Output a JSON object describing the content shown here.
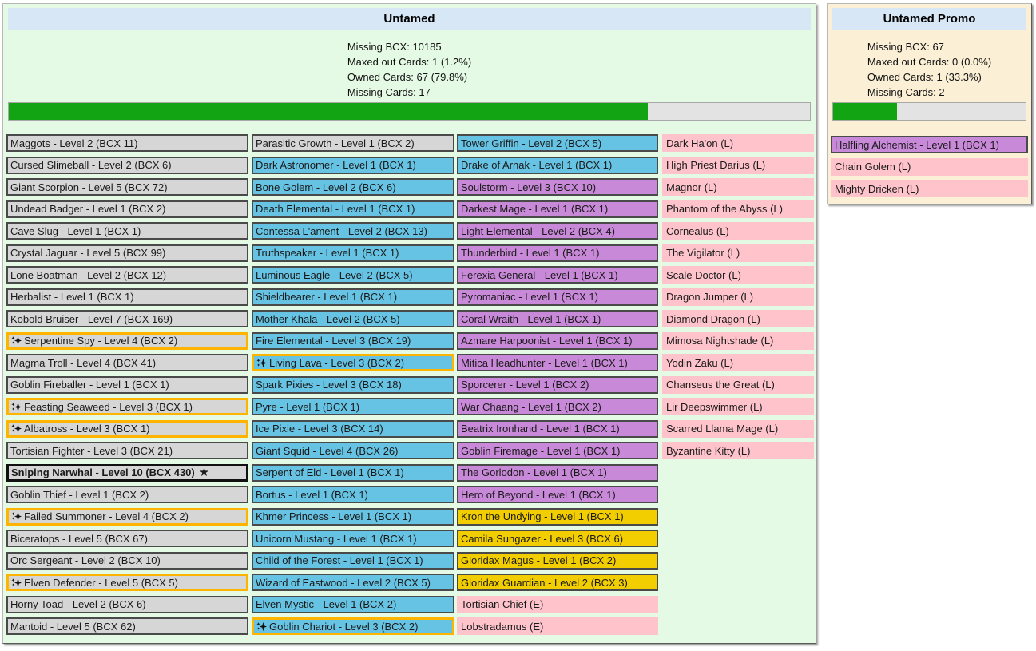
{
  "colors": {
    "panel_green_bg": "#E5FAE5",
    "panel_cream_bg": "#FBEFD5",
    "header_blue_bg": "#D8E7F6",
    "card_gray": "#D6D6D6",
    "card_blue": "#67C3E3",
    "card_purple": "#C989D9",
    "card_gold": "#F2CE00",
    "card_pink": "#FFC4CB",
    "card_border": "#4A4A4A",
    "goldfoil_border": "#FFB400",
    "maxed_border": "#111111",
    "progress_track": "#E3E3E3",
    "progress_fill": "#12A412"
  },
  "glyphs": {
    "maxed_star": "★"
  },
  "untamed": {
    "title": "Untamed",
    "stats_lines": [
      "Missing BCX: 10185",
      "Maxed out Cards: 1 (1.2%)",
      "Owned Cards: 67 (79.8%)",
      "Missing Cards: 17"
    ],
    "progress_pct": 79.8,
    "col1": [
      {
        "label": "Maggots - Level 2 (BCX 11)",
        "variant": "common"
      },
      {
        "label": "Cursed Slimeball - Level 2 (BCX 6)",
        "variant": "common"
      },
      {
        "label": "Giant Scorpion - Level 5 (BCX 72)",
        "variant": "common"
      },
      {
        "label": "Undead Badger - Level 1 (BCX 2)",
        "variant": "common"
      },
      {
        "label": "Cave Slug - Level 1 (BCX 1)",
        "variant": "common"
      },
      {
        "label": "Crystal Jaguar - Level 5 (BCX 99)",
        "variant": "common"
      },
      {
        "label": "Lone Boatman - Level 2 (BCX 12)",
        "variant": "common"
      },
      {
        "label": "Herbalist - Level 1 (BCX 1)",
        "variant": "common"
      },
      {
        "label": "Kobold Bruiser - Level 7 (BCX 169)",
        "variant": "common"
      },
      {
        "label": "Serpentine Spy - Level 4 (BCX 2)",
        "variant": "common",
        "gold": true
      },
      {
        "label": "Magma Troll - Level 4 (BCX 41)",
        "variant": "common"
      },
      {
        "label": "Goblin Fireballer - Level 1 (BCX 1)",
        "variant": "common"
      },
      {
        "label": "Feasting Seaweed - Level 3 (BCX 1)",
        "variant": "common",
        "gold": true
      },
      {
        "label": "Albatross - Level 3 (BCX 1)",
        "variant": "common",
        "gold": true
      },
      {
        "label": "Tortisian Fighter - Level 3 (BCX 21)",
        "variant": "common"
      },
      {
        "label": "Sniping Narwhal - Level 10 (BCX 430)",
        "variant": "common",
        "maxed": true
      },
      {
        "label": "Goblin Thief - Level 1 (BCX 2)",
        "variant": "common"
      },
      {
        "label": "Failed Summoner - Level 4 (BCX 2)",
        "variant": "common",
        "gold": true
      },
      {
        "label": "Biceratops - Level 5 (BCX 67)",
        "variant": "common"
      },
      {
        "label": "Orc Sergeant - Level 2 (BCX 10)",
        "variant": "common"
      },
      {
        "label": "Elven Defender - Level 5 (BCX 5)",
        "variant": "common",
        "gold": true
      },
      {
        "label": "Horny Toad - Level 2 (BCX 6)",
        "variant": "common"
      },
      {
        "label": "Mantoid - Level 5 (BCX 62)",
        "variant": "common"
      }
    ],
    "col2": [
      {
        "label": "Parasitic Growth - Level 1 (BCX 2)",
        "variant": "common"
      },
      {
        "label": "Dark Astronomer - Level 1 (BCX 1)",
        "variant": "rare"
      },
      {
        "label": "Bone Golem - Level 2 (BCX 6)",
        "variant": "rare"
      },
      {
        "label": "Death Elemental - Level 1 (BCX 1)",
        "variant": "rare"
      },
      {
        "label": "Contessa L'ament - Level 2 (BCX 13)",
        "variant": "rare"
      },
      {
        "label": "Truthspeaker - Level 1 (BCX 1)",
        "variant": "rare"
      },
      {
        "label": "Luminous Eagle - Level 2 (BCX 5)",
        "variant": "rare"
      },
      {
        "label": "Shieldbearer - Level 1 (BCX 1)",
        "variant": "rare"
      },
      {
        "label": "Mother Khala - Level 2 (BCX 5)",
        "variant": "rare"
      },
      {
        "label": "Fire Elemental - Level 3 (BCX 19)",
        "variant": "rare"
      },
      {
        "label": "Living Lava - Level 3 (BCX 2)",
        "variant": "rare",
        "gold": true
      },
      {
        "label": "Spark Pixies - Level 3 (BCX 18)",
        "variant": "rare"
      },
      {
        "label": "Pyre - Level 1 (BCX 1)",
        "variant": "rare"
      },
      {
        "label": "Ice Pixie - Level 3 (BCX 14)",
        "variant": "rare"
      },
      {
        "label": "Giant Squid - Level 4 (BCX 26)",
        "variant": "rare"
      },
      {
        "label": "Serpent of Eld - Level 1 (BCX 1)",
        "variant": "rare"
      },
      {
        "label": "Bortus - Level 1 (BCX 1)",
        "variant": "rare"
      },
      {
        "label": "Khmer Princess - Level 1 (BCX 1)",
        "variant": "rare"
      },
      {
        "label": "Unicorn Mustang - Level 1 (BCX 1)",
        "variant": "rare"
      },
      {
        "label": "Child of the Forest - Level 1 (BCX 1)",
        "variant": "rare"
      },
      {
        "label": "Wizard of Eastwood - Level 2 (BCX 5)",
        "variant": "rare"
      },
      {
        "label": "Elven Mystic - Level 1 (BCX 2)",
        "variant": "rare"
      },
      {
        "label": "Goblin Chariot - Level 3 (BCX 2)",
        "variant": "rare",
        "gold": true
      }
    ],
    "col3": [
      {
        "label": "Tower Griffin - Level 2 (BCX 5)",
        "variant": "rare"
      },
      {
        "label": "Drake of Arnak - Level 1 (BCX 1)",
        "variant": "rare"
      },
      {
        "label": "Soulstorm - Level 3 (BCX 10)",
        "variant": "epic"
      },
      {
        "label": "Darkest Mage - Level 1 (BCX 1)",
        "variant": "epic"
      },
      {
        "label": "Light Elemental - Level 2 (BCX 4)",
        "variant": "epic"
      },
      {
        "label": "Thunderbird - Level 1 (BCX 1)",
        "variant": "epic"
      },
      {
        "label": "Ferexia General - Level 1 (BCX 1)",
        "variant": "epic"
      },
      {
        "label": "Pyromaniac - Level 1 (BCX 1)",
        "variant": "epic"
      },
      {
        "label": "Coral Wraith - Level 1 (BCX 1)",
        "variant": "epic"
      },
      {
        "label": "Azmare Harpoonist - Level 1 (BCX 1)",
        "variant": "epic"
      },
      {
        "label": "Mitica Headhunter - Level 1 (BCX 1)",
        "variant": "epic"
      },
      {
        "label": "Sporcerer - Level 1 (BCX 2)",
        "variant": "epic"
      },
      {
        "label": "War Chaang - Level 1 (BCX 2)",
        "variant": "epic"
      },
      {
        "label": "Beatrix Ironhand - Level 1 (BCX 1)",
        "variant": "epic"
      },
      {
        "label": "Goblin Firemage - Level 1 (BCX 1)",
        "variant": "epic"
      },
      {
        "label": "The Gorlodon - Level 1 (BCX 1)",
        "variant": "epic"
      },
      {
        "label": "Hero of Beyond - Level 1 (BCX 1)",
        "variant": "epic"
      },
      {
        "label": "Kron the Undying - Level 1 (BCX 1)",
        "variant": "legendary"
      },
      {
        "label": "Camila Sungazer - Level 3 (BCX 6)",
        "variant": "legendary"
      },
      {
        "label": "Gloridax Magus - Level 1 (BCX 2)",
        "variant": "legendary"
      },
      {
        "label": "Gloridax Guardian - Level 2 (BCX 3)",
        "variant": "legendary"
      },
      {
        "label": "Tortisian Chief (E)",
        "variant": "missing"
      },
      {
        "label": "Lobstradamus (E)",
        "variant": "missing"
      }
    ],
    "col4": [
      {
        "label": "Dark Ha'on (L)",
        "variant": "missing"
      },
      {
        "label": "High Priest Darius (L)",
        "variant": "missing"
      },
      {
        "label": "Magnor (L)",
        "variant": "missing"
      },
      {
        "label": "Phantom of the Abyss (L)",
        "variant": "missing"
      },
      {
        "label": "Cornealus (L)",
        "variant": "missing"
      },
      {
        "label": "The Vigilator (L)",
        "variant": "missing"
      },
      {
        "label": "Scale Doctor (L)",
        "variant": "missing"
      },
      {
        "label": "Dragon Jumper (L)",
        "variant": "missing"
      },
      {
        "label": "Diamond Dragon (L)",
        "variant": "missing"
      },
      {
        "label": "Mimosa Nightshade (L)",
        "variant": "missing"
      },
      {
        "label": "Yodin Zaku (L)",
        "variant": "missing"
      },
      {
        "label": "Chanseus the Great (L)",
        "variant": "missing"
      },
      {
        "label": "Lir Deepswimmer (L)",
        "variant": "missing"
      },
      {
        "label": "Scarred Llama Mage (L)",
        "variant": "missing"
      },
      {
        "label": "Byzantine Kitty (L)",
        "variant": "missing"
      }
    ]
  },
  "untamed_promo": {
    "title": "Untamed Promo",
    "stats_lines": [
      "Missing BCX: 67",
      "Maxed out Cards: 0 (0.0%)",
      "Owned Cards: 1 (33.3%)",
      "Missing Cards: 2"
    ],
    "progress_pct": 33.3,
    "cards": [
      {
        "label": "Halfling Alchemist - Level 1 (BCX 1)",
        "variant": "epic"
      },
      {
        "label": "Chain Golem (L)",
        "variant": "missing"
      },
      {
        "label": "Mighty Dricken (L)",
        "variant": "missing"
      }
    ]
  }
}
